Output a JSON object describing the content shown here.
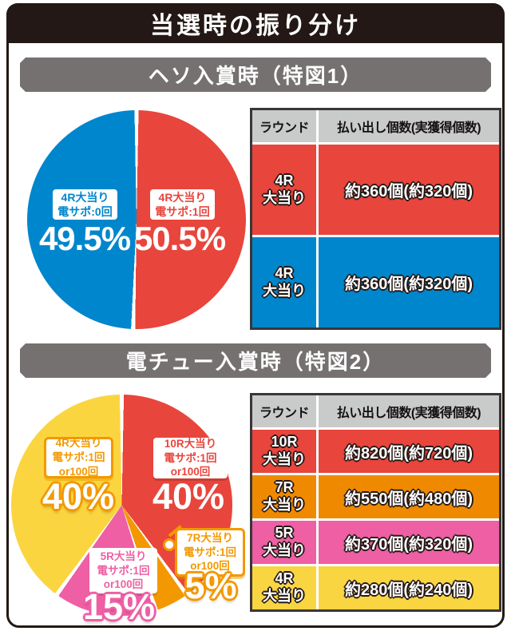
{
  "title": "当選時の振り分け",
  "colors": {
    "frame_black": "#231815",
    "section_header_gray": "#767171",
    "table_header_gray": "#c9caca",
    "red": "#e8453c",
    "blue": "#0086cd",
    "yellow": "#fbd53f",
    "orange": "#f39800",
    "orange_table": "#ef8a00",
    "pink": "#ee5fa4"
  },
  "sections": [
    {
      "header": "ヘソ入賞時（特図1）"
    },
    {
      "header": "電チュー入賞時（特図2）"
    }
  ],
  "chart_data": [
    {
      "type": "pie",
      "title": "ヘソ入賞時（特図1）",
      "start_angle": "top, clockwise",
      "slices": [
        {
          "label": "4R大当り\n電サポ:1回",
          "value": 50.5,
          "pct": "50.5%",
          "color": "#e8453c"
        },
        {
          "label": "4R大当り\n電サポ:0回",
          "value": 49.5,
          "pct": "49.5%",
          "color": "#0086cd"
        }
      ]
    },
    {
      "type": "table",
      "title": "ヘソ入賞時（特図1）",
      "columns": [
        "ラウンド",
        "払い出し個数(実獲得個数)"
      ],
      "rows": [
        {
          "round": "4R\n大当り",
          "payout": "約360個(約320個)",
          "color": "#e8453c"
        },
        {
          "round": "4R\n大当り",
          "payout": "約360個(約320個)",
          "color": "#0086cd"
        }
      ]
    },
    {
      "type": "pie",
      "title": "電チュー入賞時（特図2）",
      "start_angle": "top, clockwise",
      "slices": [
        {
          "label": "10R大当り\n電サポ:1回\nor100回",
          "value": 40,
          "pct": "40%",
          "color": "#e8453c"
        },
        {
          "label": "7R大当り\n電サポ:1回\nor100回",
          "value": 5,
          "pct": "5%",
          "color": "#f39800"
        },
        {
          "label": "5R大当り\n電サポ:1回\nor100回",
          "value": 15,
          "pct": "15%",
          "color": "#ee5fa4"
        },
        {
          "label": "4R大当り\n電サポ:1回\nor100回",
          "value": 40,
          "pct": "40%",
          "color": "#fbd53f"
        }
      ]
    },
    {
      "type": "table",
      "title": "電チュー入賞時（特図2）",
      "columns": [
        "ラウンド",
        "払い出し個数(実獲得個数)"
      ],
      "rows": [
        {
          "round": "10R\n大当り",
          "payout": "約820個(約720個)",
          "color": "#e8453c"
        },
        {
          "round": "7R\n大当り",
          "payout": "約550個(約480個)",
          "color": "#ef8a00"
        },
        {
          "round": "5R\n大当り",
          "payout": "約370個(約320個)",
          "color": "#ee5fa4"
        },
        {
          "round": "4R\n大当り",
          "payout": "約280個(約240個)",
          "color": "#f9d542"
        }
      ]
    }
  ]
}
